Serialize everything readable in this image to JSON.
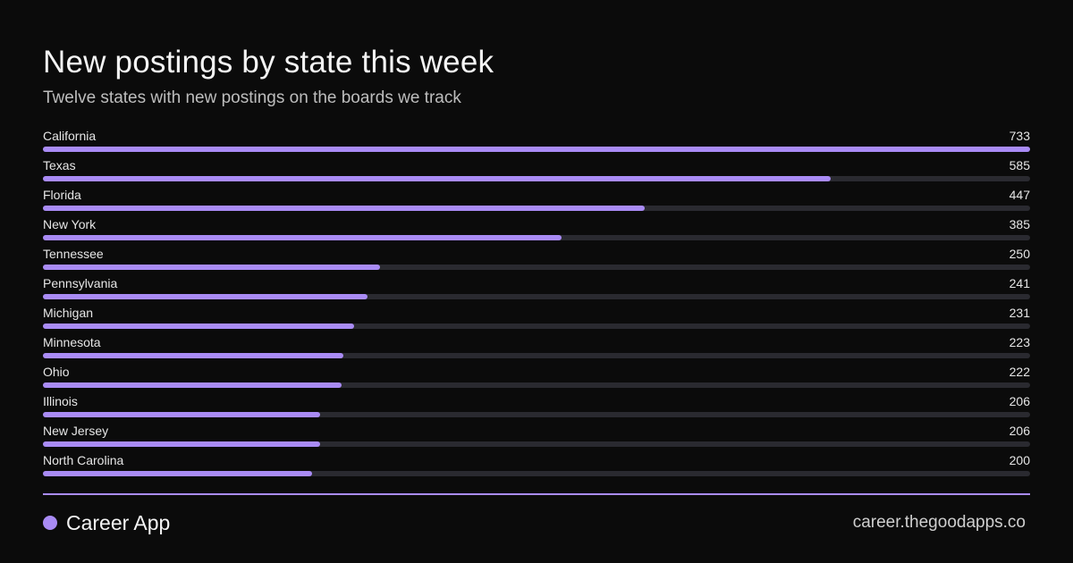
{
  "header": {
    "title": "New postings by state this week",
    "subtitle": "Twelve states with new postings on the boards we track"
  },
  "chart_data": {
    "type": "bar",
    "orientation": "horizontal",
    "categories": [
      "California",
      "Texas",
      "Florida",
      "New York",
      "Tennessee",
      "Pennsylvania",
      "Michigan",
      "Minnesota",
      "Ohio",
      "Illinois",
      "New Jersey",
      "North Carolina"
    ],
    "values": [
      733,
      585,
      447,
      385,
      250,
      241,
      231,
      223,
      222,
      206,
      206,
      200
    ],
    "xlim": [
      0,
      733
    ],
    "grid": false,
    "bar_color": "#a98bf5",
    "track_color": "#2a2a30"
  },
  "footer": {
    "brand": "Career App",
    "url": "career.thegoodapps.co",
    "accent_color": "#a98bf5"
  }
}
